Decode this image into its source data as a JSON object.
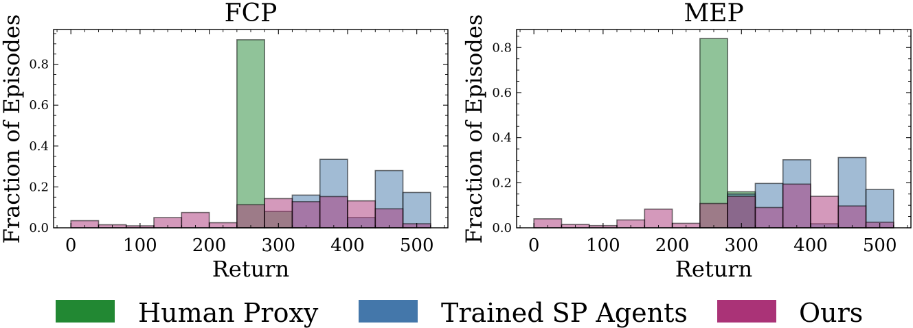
{
  "chart_data": [
    {
      "type": "bar",
      "title": "FCP",
      "xlabel": "Return",
      "ylabel": "Fraction of Episodes",
      "xlim": [
        -25,
        545
      ],
      "ylim": [
        0,
        0.97
      ],
      "xticks": [
        0,
        100,
        200,
        300,
        400,
        500
      ],
      "yticks": [
        0.0,
        0.2,
        0.4,
        0.6,
        0.8
      ],
      "ytick_labels": [
        "0.0",
        "0.2",
        "0.4",
        "0.6",
        "0.8"
      ],
      "bin_edges": [
        0,
        40,
        80,
        120,
        160,
        200,
        240,
        280,
        320,
        360,
        400,
        440,
        480,
        520
      ],
      "series": [
        {
          "name": "Human Proxy",
          "values": [
            0,
            0,
            0,
            0,
            0,
            0,
            0.92,
            0.08,
            0,
            0,
            0,
            0,
            0
          ]
        },
        {
          "name": "Trained SP Agents",
          "values": [
            0,
            0,
            0,
            0,
            0,
            0,
            0,
            0,
            0.16,
            0.335,
            0.05,
            0.28,
            0.173
          ]
        },
        {
          "name": "Ours",
          "values": [
            0.035,
            0.015,
            0.01,
            0.05,
            0.075,
            0.025,
            0.113,
            0.143,
            0.128,
            0.153,
            0.132,
            0.093,
            0.02
          ]
        }
      ]
    },
    {
      "type": "bar",
      "title": "MEP",
      "xlabel": "Return",
      "ylabel": "Fraction of Episodes",
      "xlim": [
        -25,
        545
      ],
      "ylim": [
        0,
        0.88
      ],
      "xticks": [
        0,
        100,
        200,
        300,
        400,
        500
      ],
      "yticks": [
        0.0,
        0.2,
        0.4,
        0.6,
        0.8
      ],
      "ytick_labels": [
        "0.0",
        "0.2",
        "0.4",
        "0.6",
        "0.8"
      ],
      "bin_edges": [
        0,
        40,
        80,
        120,
        160,
        200,
        240,
        280,
        320,
        360,
        400,
        440,
        480,
        520
      ],
      "series": [
        {
          "name": "Human Proxy",
          "values": [
            0,
            0,
            0,
            0,
            0,
            0,
            0.84,
            0.16,
            0,
            0,
            0,
            0,
            0
          ]
        },
        {
          "name": "Trained SP Agents",
          "values": [
            0,
            0,
            0,
            0,
            0,
            0,
            0,
            0.15,
            0.197,
            0.302,
            0.018,
            0.312,
            0.17
          ]
        },
        {
          "name": "Ours",
          "values": [
            0.04,
            0.015,
            0.01,
            0.035,
            0.083,
            0.02,
            0.108,
            0.14,
            0.09,
            0.194,
            0.14,
            0.097,
            0.025
          ]
        }
      ]
    }
  ],
  "legend": {
    "placement": "bottom",
    "items": [
      {
        "label": "Human Proxy",
        "color": "#228833"
      },
      {
        "label": "Trained SP Agents",
        "color": "#4477aa"
      },
      {
        "label": "Ours",
        "color": "#aa3377"
      }
    ]
  },
  "style": {
    "series_colors": [
      "#228833",
      "#4477aa",
      "#aa3377"
    ],
    "bar_opacity": 0.5,
    "edge_color": "#000000"
  }
}
